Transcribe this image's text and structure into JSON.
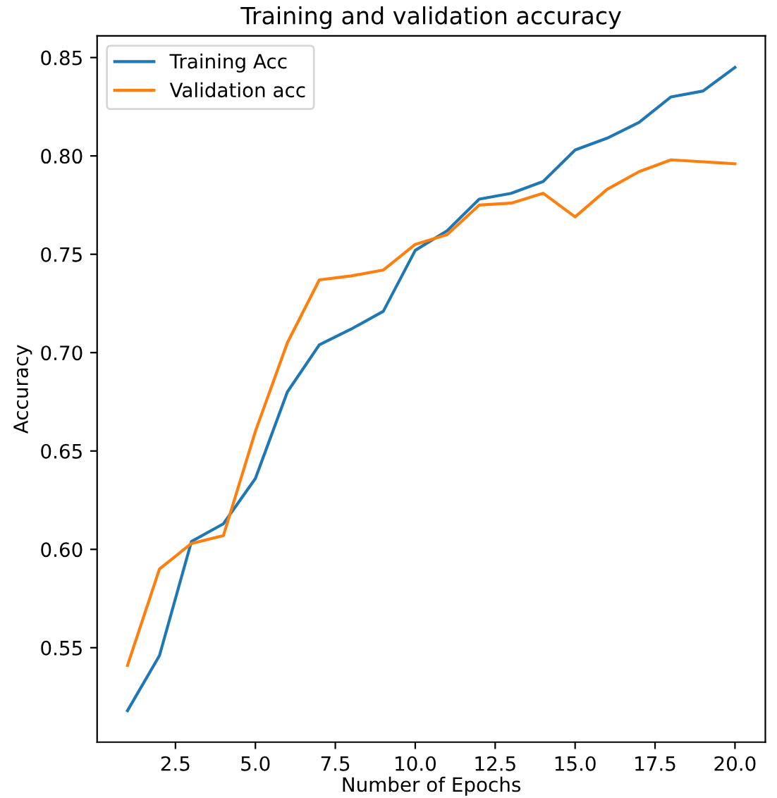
{
  "chart_data": {
    "type": "line",
    "title": "Training and validation accuracy",
    "xlabel": "Number of Epochs",
    "ylabel": "Accuracy",
    "x": [
      1,
      2,
      3,
      4,
      5,
      6,
      7,
      8,
      9,
      10,
      11,
      12,
      13,
      14,
      15,
      16,
      17,
      18,
      19,
      20
    ],
    "series": [
      {
        "name": "Training Acc",
        "color": "#1f77b4",
        "values": [
          0.518,
          0.546,
          0.604,
          0.613,
          0.636,
          0.68,
          0.704,
          0.712,
          0.721,
          0.752,
          0.762,
          0.778,
          0.781,
          0.787,
          0.803,
          0.809,
          0.817,
          0.83,
          0.833,
          0.845
        ]
      },
      {
        "name": "Validation acc",
        "color": "#ff7f0e",
        "values": [
          0.541,
          0.59,
          0.603,
          0.607,
          0.66,
          0.705,
          0.737,
          0.739,
          0.742,
          0.755,
          0.76,
          0.775,
          0.776,
          0.781,
          0.769,
          0.783,
          0.792,
          0.798,
          0.797,
          0.796
        ]
      }
    ],
    "xlim": [
      0.05,
      20.95
    ],
    "ylim": [
      0.502,
      0.861
    ],
    "xticks": [
      {
        "value": 2.5,
        "label": "2.5"
      },
      {
        "value": 5,
        "label": "5.0"
      },
      {
        "value": 7.5,
        "label": "7.5"
      },
      {
        "value": 10,
        "label": "10.0"
      },
      {
        "value": 12.5,
        "label": "12.5"
      },
      {
        "value": 15,
        "label": "15.0"
      },
      {
        "value": 17.5,
        "label": "17.5"
      },
      {
        "value": 20,
        "label": "20.0"
      }
    ],
    "yticks": [
      {
        "value": 0.55,
        "label": "0.55"
      },
      {
        "value": 0.6,
        "label": "0.60"
      },
      {
        "value": 0.65,
        "label": "0.65"
      },
      {
        "value": 0.7,
        "label": "0.70"
      },
      {
        "value": 0.75,
        "label": "0.75"
      },
      {
        "value": 0.8,
        "label": "0.80"
      },
      {
        "value": 0.85,
        "label": "0.85"
      }
    ],
    "legend": "top left",
    "grid": false
  }
}
